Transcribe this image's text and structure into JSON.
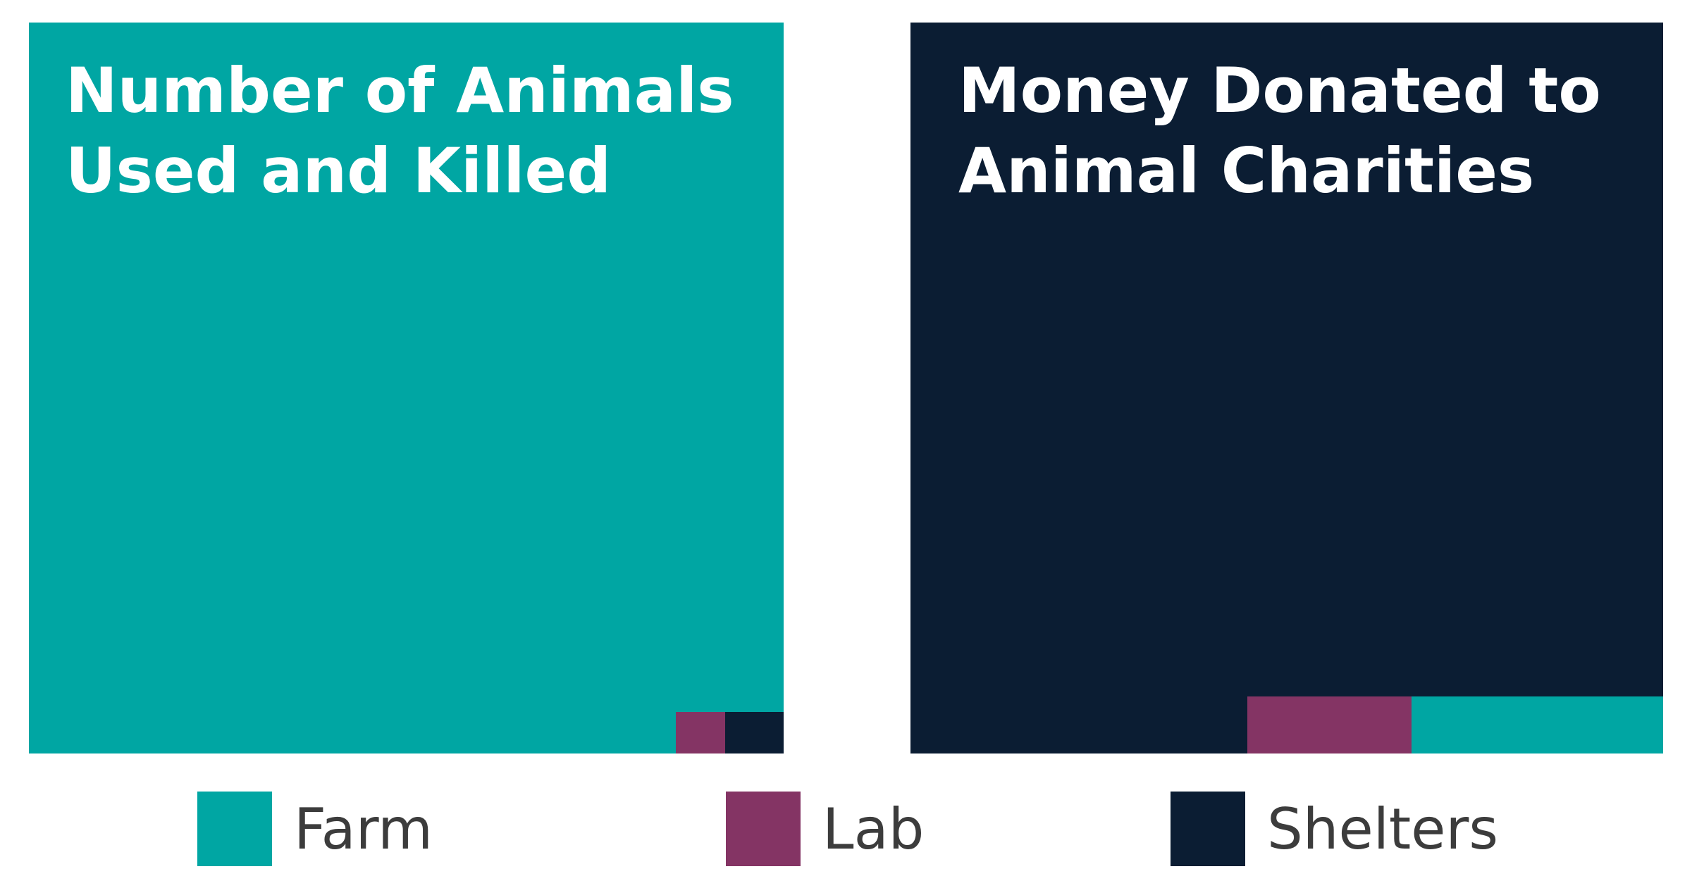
{
  "colors": {
    "farm": "#00a6a3",
    "lab": "#843464",
    "shelters": "#0b1d33",
    "background": "#ffffff",
    "title_text": "#ffffff",
    "legend_text": "#3c3c3c"
  },
  "chart_data": [
    {
      "type": "treemap",
      "title": "Number of Animals Used and Killed",
      "categories": [
        "Farm",
        "Lab",
        "Shelters"
      ],
      "values": [
        99.0,
        0.37,
        0.44
      ],
      "unit": "% of animals used and killed (estimated from areas)"
    },
    {
      "type": "treemap",
      "title": "Money Donated to Animal Charities",
      "categories": [
        "Shelters",
        "Lab",
        "Farm"
      ],
      "values": [
        95.8,
        1.7,
        2.6
      ],
      "unit": "% of money donated (estimated from areas)"
    }
  ],
  "legend": {
    "items": [
      {
        "label": "Farm",
        "color": "#00a6a3"
      },
      {
        "label": "Lab",
        "color": "#843464"
      },
      {
        "label": "Shelters",
        "color": "#0b1d33"
      }
    ]
  }
}
